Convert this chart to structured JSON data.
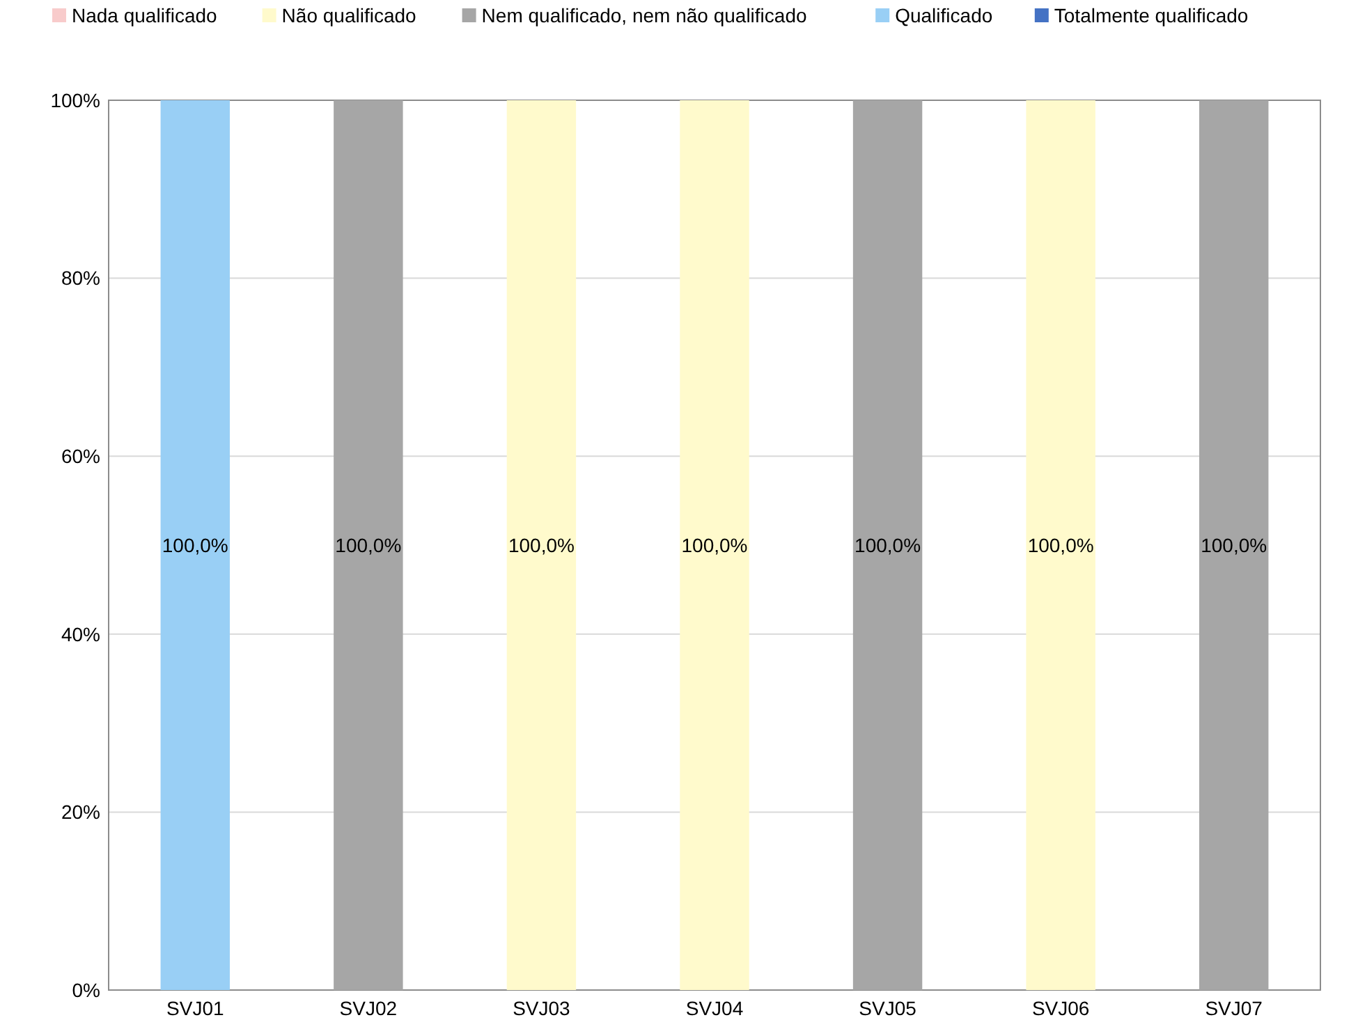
{
  "chart_data": {
    "type": "bar",
    "stacked": true,
    "categories": [
      "SVJ01",
      "SVJ02",
      "SVJ03",
      "SVJ04",
      "SVJ05",
      "SVJ06",
      "SVJ07"
    ],
    "series": [
      {
        "name": "Nada qualificado",
        "color": "#f8cbcb",
        "values": [
          0,
          0,
          0,
          0,
          0,
          0,
          0
        ],
        "value_labels": [
          null,
          null,
          null,
          null,
          null,
          null,
          null
        ]
      },
      {
        "name": "Não qualificado",
        "color": "#fffacc",
        "values": [
          0,
          0,
          100,
          100,
          0,
          100,
          0
        ],
        "value_labels": [
          null,
          null,
          "100,0%",
          "100,0%",
          null,
          "100,0%",
          null
        ]
      },
      {
        "name": "Nem qualificado, nem não qualificado",
        "color": "#a6a6a6",
        "values": [
          0,
          100,
          0,
          0,
          100,
          0,
          100
        ],
        "value_labels": [
          null,
          "100,0%",
          null,
          null,
          "100,0%",
          null,
          "100,0%"
        ]
      },
      {
        "name": "Qualificado",
        "color": "#99cff5",
        "values": [
          100,
          0,
          0,
          0,
          0,
          0,
          0
        ],
        "value_labels": [
          "100,0%",
          null,
          null,
          null,
          null,
          null,
          null
        ]
      },
      {
        "name": "Totalmente qualificado",
        "color": "#4472c4",
        "values": [
          0,
          0,
          0,
          0,
          0,
          0,
          0
        ],
        "value_labels": [
          null,
          null,
          null,
          null,
          null,
          null,
          null
        ]
      }
    ],
    "ylim": [
      0,
      100
    ],
    "yticks": [
      {
        "value": 0,
        "label": "0%"
      },
      {
        "value": 20,
        "label": "20%"
      },
      {
        "value": 40,
        "label": "40%"
      },
      {
        "value": 60,
        "label": "60%"
      },
      {
        "value": 80,
        "label": "80%"
      },
      {
        "value": 100,
        "label": "100%"
      }
    ],
    "grid": "y",
    "legend": "top"
  }
}
